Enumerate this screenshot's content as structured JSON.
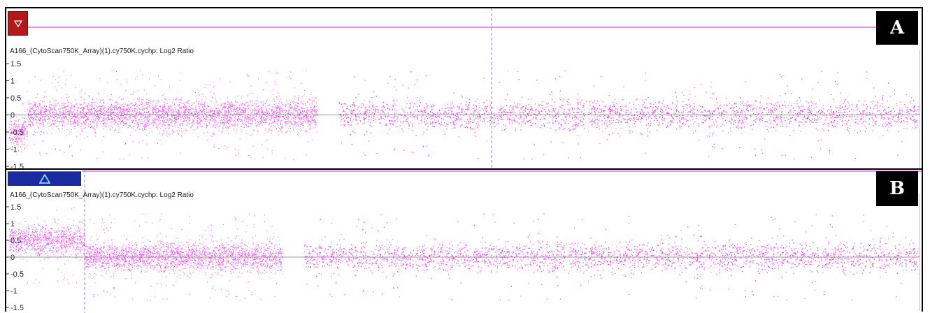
{
  "colors": {
    "points": "#ff33ff",
    "zero_line": "#9a9a9a",
    "cursor_line": "#7f7ff2",
    "segment_line": "#ee66ee",
    "marker_a": "#b3191b",
    "marker_b": "#1a2aa0"
  },
  "panels": [
    {
      "tag": "A",
      "marker_icon": "down-triangle-icon",
      "track_label": "A166_(CytoScan750K_Array)(1).cy750K.cychp: Log2 Ratio",
      "y_ticks": [
        "1.5",
        "1",
        "0.5",
        "0",
        "-0.5",
        "-1",
        "-1.5"
      ]
    },
    {
      "tag": "B",
      "marker_icon": "up-triangle-icon",
      "track_label": "A166_(CytoScan750K_Array)(1).cy750K.cychp: Log2 Ratio",
      "y_ticks": [
        "1.5",
        "1",
        "0.5",
        "0",
        "-0.5",
        "-1",
        "-1.5"
      ]
    }
  ],
  "chart_data": [
    {
      "type": "scatter",
      "title": "",
      "xlabel": "",
      "ylabel": "Log2 Ratio",
      "ylim": [
        -1.5,
        1.5
      ],
      "y_tick_values": [
        1.5,
        1,
        0.5,
        0,
        -0.5,
        -1,
        -1.5
      ],
      "x_range": [
        0,
        1
      ],
      "cursor_x": 0.53,
      "segments": [
        {
          "x_start": 0.0,
          "x_end": 0.02,
          "log2_ratio": -0.5
        },
        {
          "x_start": 0.02,
          "x_end": 0.338,
          "log2_ratio": 0.0
        },
        {
          "x_start": 0.338,
          "x_end": 0.362,
          "gap": true
        },
        {
          "x_start": 0.362,
          "x_end": 1.0,
          "log2_ratio": 0.0
        }
      ]
    },
    {
      "type": "scatter",
      "title": "",
      "xlabel": "",
      "ylabel": "Log2 Ratio",
      "ylim": [
        -1.5,
        1.5
      ],
      "y_tick_values": [
        1.5,
        1,
        0.5,
        0,
        -0.5,
        -1,
        -1.5
      ],
      "x_range": [
        0,
        1
      ],
      "cursor_x": 0.083,
      "segments": [
        {
          "x_start": 0.0,
          "x_end": 0.083,
          "log2_ratio": 0.5
        },
        {
          "x_start": 0.083,
          "x_end": 0.3,
          "log2_ratio": 0.0
        },
        {
          "x_start": 0.3,
          "x_end": 0.324,
          "gap": true
        },
        {
          "x_start": 0.324,
          "x_end": 1.0,
          "log2_ratio": 0.0
        }
      ]
    }
  ]
}
